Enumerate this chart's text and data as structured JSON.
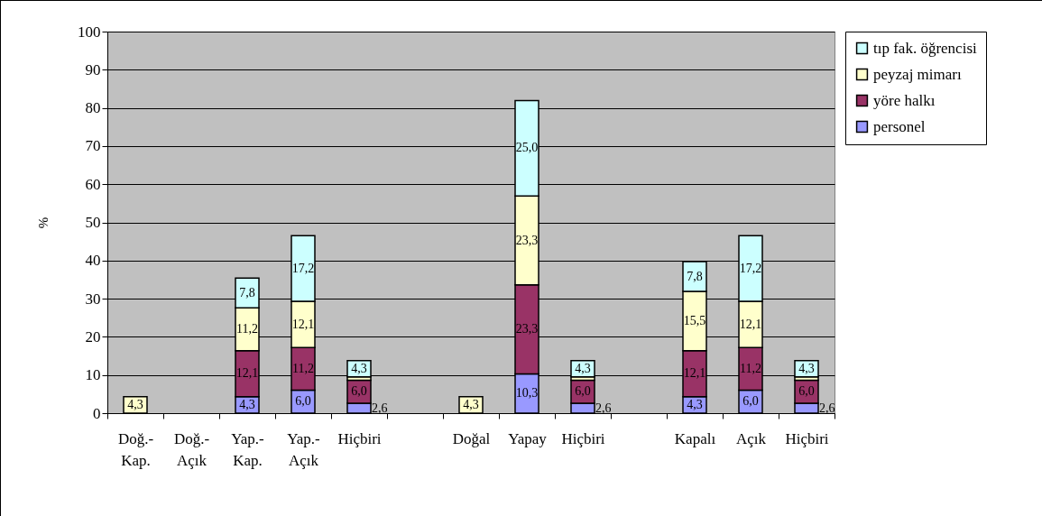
{
  "chart_data": {
    "type": "bar",
    "stacked": true,
    "ylabel": "%",
    "ylim": [
      0,
      100
    ],
    "yticks": [
      0,
      10,
      20,
      30,
      40,
      50,
      60,
      70,
      80,
      90,
      100
    ],
    "grid": "y",
    "legend": "right",
    "categories": [
      "Doğ.-Kap.",
      "Doğ.-Açık",
      "Yap.-Kap.",
      "Yap.-Açık",
      "Hiçbiri",
      null,
      "Doğal",
      "Yapay",
      "Hiçbiri",
      null,
      "Kapalı",
      "Açık",
      "Hiçbiri"
    ],
    "series": [
      {
        "name": "personel",
        "color": "#9999ff",
        "values": [
          null,
          null,
          4.3,
          6.0,
          2.6,
          null,
          null,
          10.3,
          2.6,
          null,
          4.3,
          6.0,
          2.6
        ],
        "value_labels": [
          null,
          null,
          "4,3",
          "6,0",
          "2,6",
          null,
          null,
          "10,3",
          "2,6",
          null,
          "4,3",
          "6,0",
          "2,6"
        ]
      },
      {
        "name": "yöre halkı",
        "color": "#993366",
        "values": [
          null,
          null,
          12.1,
          11.2,
          6.0,
          null,
          null,
          23.3,
          6.0,
          null,
          12.1,
          11.2,
          6.0
        ],
        "value_labels": [
          null,
          null,
          "12,1",
          "11,2",
          "6,0",
          null,
          null,
          "23,3",
          "6,0",
          null,
          "12,1",
          "11,2",
          "6,0"
        ]
      },
      {
        "name": "peyzaj mimarı",
        "color": "#ffffcc",
        "values": [
          4.3,
          null,
          11.2,
          12.1,
          0.9,
          null,
          4.3,
          23.3,
          0.9,
          null,
          15.5,
          12.1,
          0.9
        ],
        "value_labels": [
          "4,3",
          null,
          "11,2",
          "12,1",
          null,
          null,
          "4,3",
          "23,3",
          null,
          null,
          "15,5",
          "12,1",
          null
        ]
      },
      {
        "name": "tıp fak. öğrencisi",
        "color": "#ccffff",
        "values": [
          null,
          null,
          7.8,
          17.2,
          4.3,
          null,
          null,
          25.0,
          4.3,
          null,
          7.8,
          17.2,
          4.3
        ],
        "value_labels": [
          null,
          null,
          "7,8",
          "17,2",
          "4,3",
          null,
          null,
          "25,0",
          "4,3",
          null,
          "7,8",
          "17,2",
          "4,3"
        ]
      }
    ]
  }
}
